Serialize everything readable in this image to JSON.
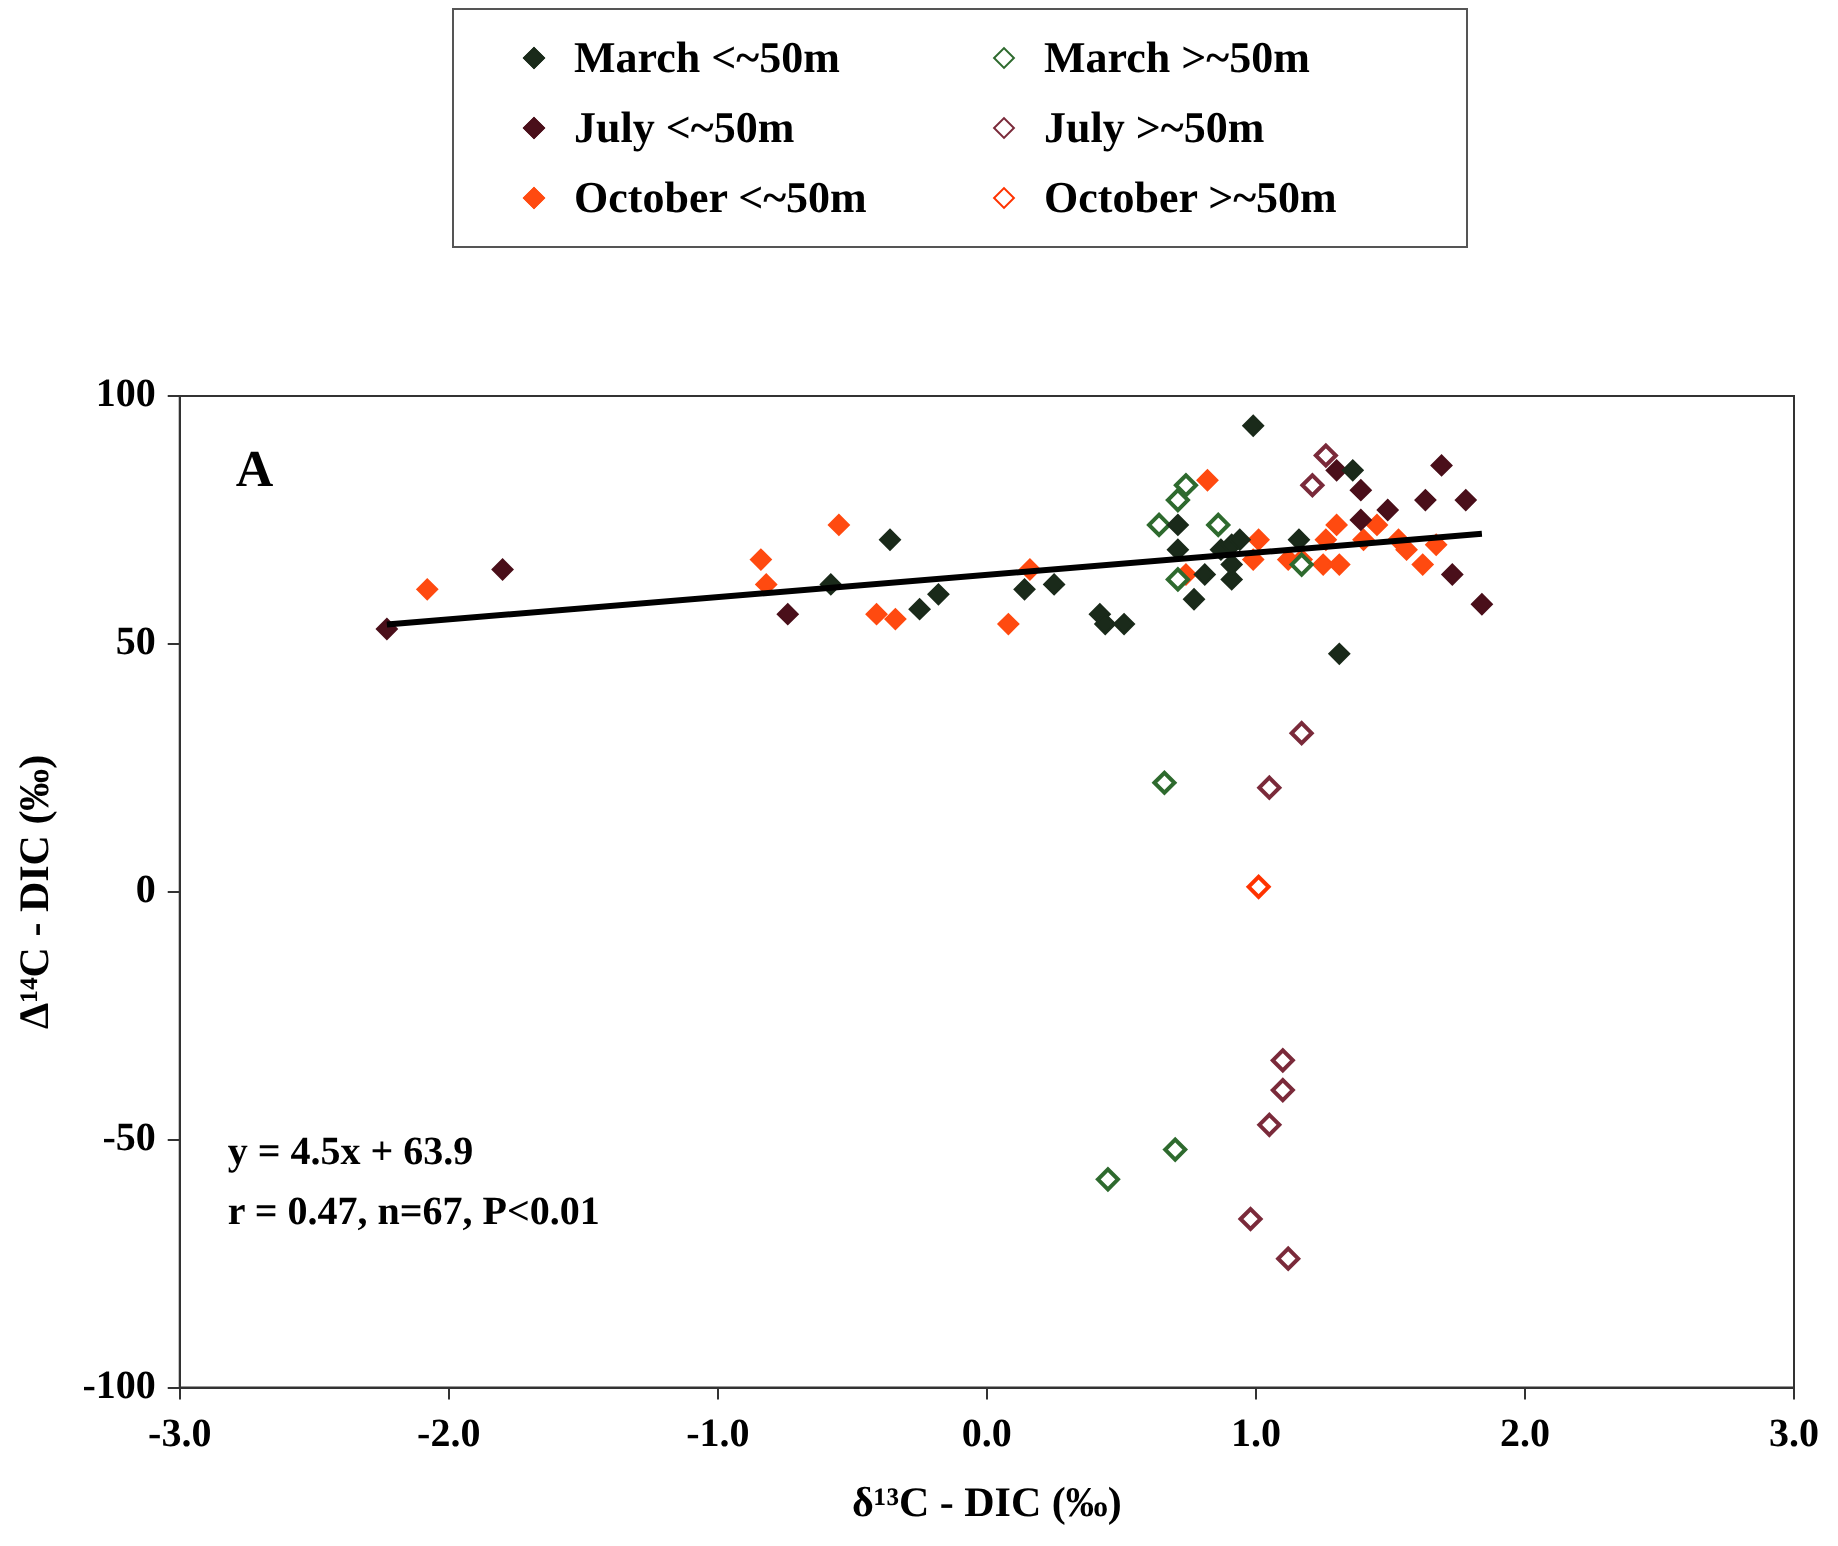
{
  "chart_data": {
    "type": "scatter",
    "xlabel": "δ¹³C - DIC (‰)",
    "ylabel": "Δ¹⁴C - DIC (‰)",
    "xlim": [
      -3,
      3
    ],
    "xticks": [
      {
        "value": -3,
        "label": "-3.0"
      },
      {
        "value": -2,
        "label": "-2.0"
      },
      {
        "value": -1,
        "label": "-1.0"
      },
      {
        "value": 0,
        "label": "0.0"
      },
      {
        "value": 1,
        "label": "1.0"
      },
      {
        "value": 2,
        "label": "2.0"
      },
      {
        "value": 3,
        "label": "3.0"
      }
    ],
    "ylim": [
      -100,
      100
    ],
    "yticks": [
      -100,
      -50,
      0,
      50,
      100
    ],
    "grid": false,
    "legend": "top",
    "marker": "diamond",
    "annotations": [
      "A",
      "y = 4.5x + 63.9",
      "r = 0.47, n=67, P<0.01"
    ],
    "series": [
      {
        "name": "March <~50m",
        "color": "#1a2a1a",
        "x": [
          -0.58,
          -0.36,
          -0.25,
          -0.18,
          0.14,
          0.25,
          0.42,
          0.44,
          0.51,
          0.71,
          0.71,
          0.81,
          0.77,
          0.91,
          0.87,
          0.91,
          0.94,
          0.91,
          0.99,
          1.16,
          1.36,
          1.31
        ],
        "values": [
          62,
          71,
          57,
          60,
          61,
          62,
          56,
          54,
          54,
          74,
          69,
          64,
          59,
          63,
          69,
          70,
          71,
          66,
          94,
          71,
          85,
          48
        ]
      },
      {
        "name": "March >~50m",
        "color": "#2e6a2e",
        "marker": "diamond-open",
        "x": [
          0.64,
          0.71,
          0.74,
          0.86,
          0.71,
          1.17,
          0.66,
          0.7,
          0.45
        ],
        "values": [
          74,
          79,
          82,
          74,
          63,
          66,
          22,
          -52,
          -58
        ]
      },
      {
        "name": "July <~50m",
        "color": "#4a0f1a",
        "x": [
          -2.23,
          -1.8,
          -0.74,
          1.3,
          1.39,
          1.39,
          1.49,
          1.69,
          1.63,
          1.78,
          1.73,
          1.84
        ],
        "values": [
          53,
          65,
          56,
          85,
          81,
          75,
          77,
          86,
          79,
          79,
          64,
          58
        ]
      },
      {
        "name": "July >~50m",
        "color": "#7a2a3a",
        "marker": "diamond-open",
        "x": [
          1.26,
          1.21,
          1.17,
          1.05,
          1.1,
          1.1,
          1.05,
          0.98,
          1.12
        ],
        "values": [
          88,
          82,
          32,
          21,
          -34,
          -40,
          -47,
          -66,
          -74
        ]
      },
      {
        "name": "October <~50m",
        "color": "#ff4a10",
        "x": [
          -2.08,
          -0.84,
          -0.82,
          -0.55,
          -0.41,
          -0.34,
          0.16,
          0.08,
          0.82,
          0.74,
          1.01,
          0.99,
          1.12,
          1.17,
          1.25,
          1.31,
          1.26,
          1.3,
          1.4,
          1.45,
          1.53,
          1.56,
          1.62,
          1.67
        ],
        "values": [
          61,
          67,
          62,
          74,
          56,
          55,
          65,
          54,
          83,
          64,
          71,
          67,
          67,
          67,
          66,
          66,
          71,
          74,
          71,
          74,
          71,
          69,
          66,
          70
        ]
      },
      {
        "name": "October >~50m",
        "color": "#ff3300",
        "marker": "diamond-open",
        "x": [
          1.01
        ],
        "values": [
          1
        ]
      },
      {
        "type": "line",
        "color": "#000000",
        "marker": "none",
        "x": [
          -2.23,
          1.84
        ],
        "values": [
          53.9,
          72.2
        ]
      }
    ]
  }
}
